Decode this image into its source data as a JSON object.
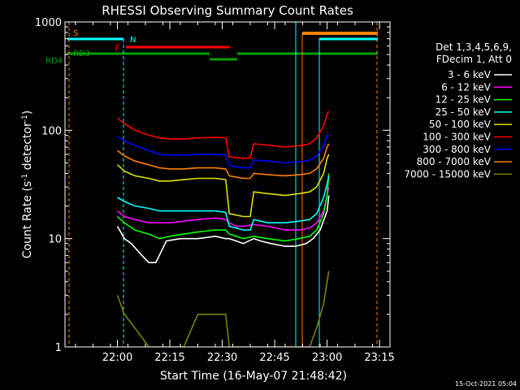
{
  "chart_data": {
    "type": "line",
    "title": "RHESSI Observing Summary Count Rates",
    "xlabel": "Start Time (16-May-07 21:48:42)",
    "ylabel_main": "Count Rate (s",
    "ylabel_sup1": "-1",
    "ylabel_mid": " detector",
    "ylabel_sup2": "-1",
    "ylabel_end": ")",
    "xlim_min": [
      -3,
      45
    ],
    "ylim": [
      1,
      1000
    ],
    "yscale": "log",
    "x_ticks": [
      {
        "minute": 12,
        "label": "22:00"
      },
      {
        "minute": 27,
        "label": "22:15"
      },
      {
        "minute": 42,
        "label": "22:30"
      },
      {
        "minute": 57,
        "label": "22:45"
      },
      {
        "minute": 72,
        "label": "23:00"
      },
      {
        "minute": 87,
        "label": "23:15"
      }
    ],
    "y_ticks": [
      {
        "value": 1,
        "label": "1"
      },
      {
        "value": 10,
        "label": "10"
      },
      {
        "value": 100,
        "label": "100"
      },
      {
        "value": 1000,
        "label": "1000"
      }
    ],
    "legend": {
      "placement": "right",
      "header1": "Det 1,3,4,5,6,9,",
      "header2": "FDecim 1, Att 0"
    },
    "series": [
      {
        "name": "3 - 6 keV",
        "color": "#ffffff",
        "points": [
          [
            12,
            13
          ],
          [
            14,
            10
          ],
          [
            16,
            9
          ],
          [
            19,
            7
          ],
          [
            21,
            6
          ],
          [
            23,
            6
          ],
          [
            26,
            9.5
          ],
          [
            30,
            10
          ],
          [
            35,
            10
          ],
          [
            40,
            10.5
          ],
          [
            43,
            10
          ],
          [
            44,
            10
          ],
          [
            46,
            9.5
          ],
          [
            48,
            9
          ],
          [
            51,
            10
          ],
          [
            53,
            9.5
          ],
          [
            56,
            9
          ],
          [
            60,
            8.5
          ],
          [
            63,
            8.5
          ],
          [
            66,
            9
          ],
          [
            68,
            10
          ],
          [
            70,
            12
          ],
          [
            72,
            18
          ],
          [
            72.5,
            25
          ]
        ]
      },
      {
        "name": "6 - 12 keV",
        "color": "#ff00ff",
        "points": [
          [
            12,
            18
          ],
          [
            14,
            16
          ],
          [
            17,
            15
          ],
          [
            21,
            14
          ],
          [
            24,
            14
          ],
          [
            27,
            14
          ],
          [
            31,
            14.5
          ],
          [
            35,
            15
          ],
          [
            40,
            15.5
          ],
          [
            43,
            15
          ],
          [
            44,
            14
          ],
          [
            46,
            13
          ],
          [
            48,
            13
          ],
          [
            51,
            13.5
          ],
          [
            55,
            13
          ],
          [
            60,
            12
          ],
          [
            64,
            12
          ],
          [
            67,
            12.5
          ],
          [
            69,
            14
          ],
          [
            71,
            18
          ],
          [
            72,
            25
          ],
          [
            72.5,
            30
          ]
        ]
      },
      {
        "name": "12 - 25 keV",
        "color": "#00ff00",
        "points": [
          [
            12,
            16
          ],
          [
            14,
            14
          ],
          [
            17,
            12
          ],
          [
            21,
            11
          ],
          [
            24,
            10
          ],
          [
            27,
            10.5
          ],
          [
            31,
            11
          ],
          [
            35,
            11.5
          ],
          [
            40,
            12
          ],
          [
            43,
            12
          ],
          [
            44,
            11
          ],
          [
            46,
            10.5
          ],
          [
            48,
            10
          ],
          [
            51,
            10.5
          ],
          [
            55,
            10
          ],
          [
            60,
            9.5
          ],
          [
            64,
            10
          ],
          [
            67,
            10.5
          ],
          [
            69,
            12
          ],
          [
            71,
            17
          ],
          [
            72,
            25
          ],
          [
            72.5,
            40
          ]
        ]
      },
      {
        "name": "25 - 50 keV",
        "color": "#00ffff",
        "points": [
          [
            12,
            24
          ],
          [
            14,
            22
          ],
          [
            17,
            20
          ],
          [
            21,
            19
          ],
          [
            24,
            18
          ],
          [
            27,
            18
          ],
          [
            31,
            18
          ],
          [
            35,
            18
          ],
          [
            40,
            18
          ],
          [
            43,
            17.5
          ],
          [
            44,
            13
          ],
          [
            46,
            12.5
          ],
          [
            48,
            12
          ],
          [
            50,
            12
          ],
          [
            51,
            15
          ],
          [
            55,
            14
          ],
          [
            60,
            14
          ],
          [
            64,
            14.5
          ],
          [
            67,
            15
          ],
          [
            69,
            17
          ],
          [
            71,
            24
          ],
          [
            72,
            32
          ],
          [
            72.5,
            38
          ]
        ]
      },
      {
        "name": "50 - 100 keV",
        "color": "#e0e000",
        "points": [
          [
            12,
            48
          ],
          [
            14,
            42
          ],
          [
            17,
            38
          ],
          [
            21,
            36
          ],
          [
            24,
            34
          ],
          [
            27,
            34
          ],
          [
            31,
            35
          ],
          [
            35,
            36
          ],
          [
            40,
            36
          ],
          [
            43,
            35
          ],
          [
            44,
            17
          ],
          [
            46,
            16.5
          ],
          [
            48,
            16
          ],
          [
            50,
            16
          ],
          [
            51,
            27
          ],
          [
            55,
            26
          ],
          [
            60,
            25
          ],
          [
            64,
            26
          ],
          [
            67,
            27
          ],
          [
            69,
            30
          ],
          [
            71,
            40
          ],
          [
            72,
            55
          ],
          [
            72.5,
            60
          ]
        ]
      },
      {
        "name": "100 - 300 keV",
        "color": "#ff0000",
        "points": [
          [
            12,
            130
          ],
          [
            14,
            115
          ],
          [
            17,
            100
          ],
          [
            21,
            90
          ],
          [
            24,
            85
          ],
          [
            27,
            83
          ],
          [
            31,
            83
          ],
          [
            35,
            85
          ],
          [
            40,
            86
          ],
          [
            43,
            85
          ],
          [
            44,
            57
          ],
          [
            46,
            56
          ],
          [
            48,
            55
          ],
          [
            50,
            56
          ],
          [
            51,
            75
          ],
          [
            55,
            73
          ],
          [
            60,
            70
          ],
          [
            64,
            72
          ],
          [
            67,
            75
          ],
          [
            69,
            85
          ],
          [
            71,
            110
          ],
          [
            72,
            140
          ],
          [
            72.5,
            150
          ]
        ]
      },
      {
        "name": "300 - 800 keV",
        "color": "#0000ff",
        "points": [
          [
            12,
            88
          ],
          [
            14,
            80
          ],
          [
            17,
            72
          ],
          [
            21,
            65
          ],
          [
            24,
            60
          ],
          [
            27,
            59
          ],
          [
            31,
            59
          ],
          [
            35,
            60
          ],
          [
            40,
            60
          ],
          [
            43,
            59
          ],
          [
            44,
            47
          ],
          [
            46,
            46
          ],
          [
            48,
            45
          ],
          [
            50,
            45
          ],
          [
            51,
            53
          ],
          [
            55,
            52
          ],
          [
            60,
            50
          ],
          [
            64,
            51
          ],
          [
            67,
            53
          ],
          [
            69,
            58
          ],
          [
            71,
            72
          ],
          [
            72,
            88
          ],
          [
            72.5,
            92
          ]
        ]
      },
      {
        "name": "800 - 7000 keV",
        "color": "#ff8000",
        "points": [
          [
            12,
            65
          ],
          [
            14,
            58
          ],
          [
            17,
            52
          ],
          [
            21,
            48
          ],
          [
            24,
            45
          ],
          [
            27,
            44
          ],
          [
            31,
            44
          ],
          [
            35,
            45
          ],
          [
            40,
            45
          ],
          [
            43,
            44
          ],
          [
            44,
            38
          ],
          [
            46,
            37
          ],
          [
            48,
            36
          ],
          [
            50,
            36
          ],
          [
            51,
            40
          ],
          [
            55,
            39
          ],
          [
            60,
            38
          ],
          [
            64,
            39
          ],
          [
            67,
            40
          ],
          [
            69,
            44
          ],
          [
            71,
            55
          ],
          [
            72,
            70
          ],
          [
            72.5,
            75
          ]
        ]
      },
      {
        "name": "7000 - 15000 keV",
        "color": "#808000",
        "points": [
          [
            12,
            3
          ],
          [
            14,
            2
          ],
          [
            17,
            1.5
          ],
          [
            21,
            1
          ],
          [
            24,
            1
          ],
          [
            27,
            1
          ],
          [
            31,
            1
          ],
          [
            35,
            2
          ],
          [
            40,
            2
          ],
          [
            43,
            2
          ],
          [
            44,
            1
          ],
          [
            46,
            1
          ],
          [
            48,
            1
          ],
          [
            51,
            1
          ],
          [
            55,
            1
          ],
          [
            60,
            1
          ],
          [
            64,
            1
          ],
          [
            67,
            1
          ],
          [
            69,
            1.5
          ],
          [
            71,
            2.5
          ],
          [
            72,
            4
          ],
          [
            72.5,
            5
          ]
        ]
      }
    ],
    "flag_lines": [
      {
        "label": "S",
        "color": "#ff8000",
        "x_min": [
          -3,
          11
        ],
        "y": 900
      },
      {
        "label": "N",
        "color": "#00ffff",
        "x_min": [
          -3,
          11
        ],
        "y": 670
      },
      {
        "label": "F",
        "color": "#ff0000",
        "x_min": [
          -3,
          11
        ],
        "y": 560
      },
      {
        "label": "RD3",
        "color": "#00a000",
        "x_min": [
          -3,
          11
        ],
        "y": 500
      },
      {
        "label": "RD4",
        "color": "#00a000",
        "x_min": [
          -3,
          11
        ],
        "y": 420
      }
    ],
    "footer_date": "15-Oct-2021 05:04"
  }
}
